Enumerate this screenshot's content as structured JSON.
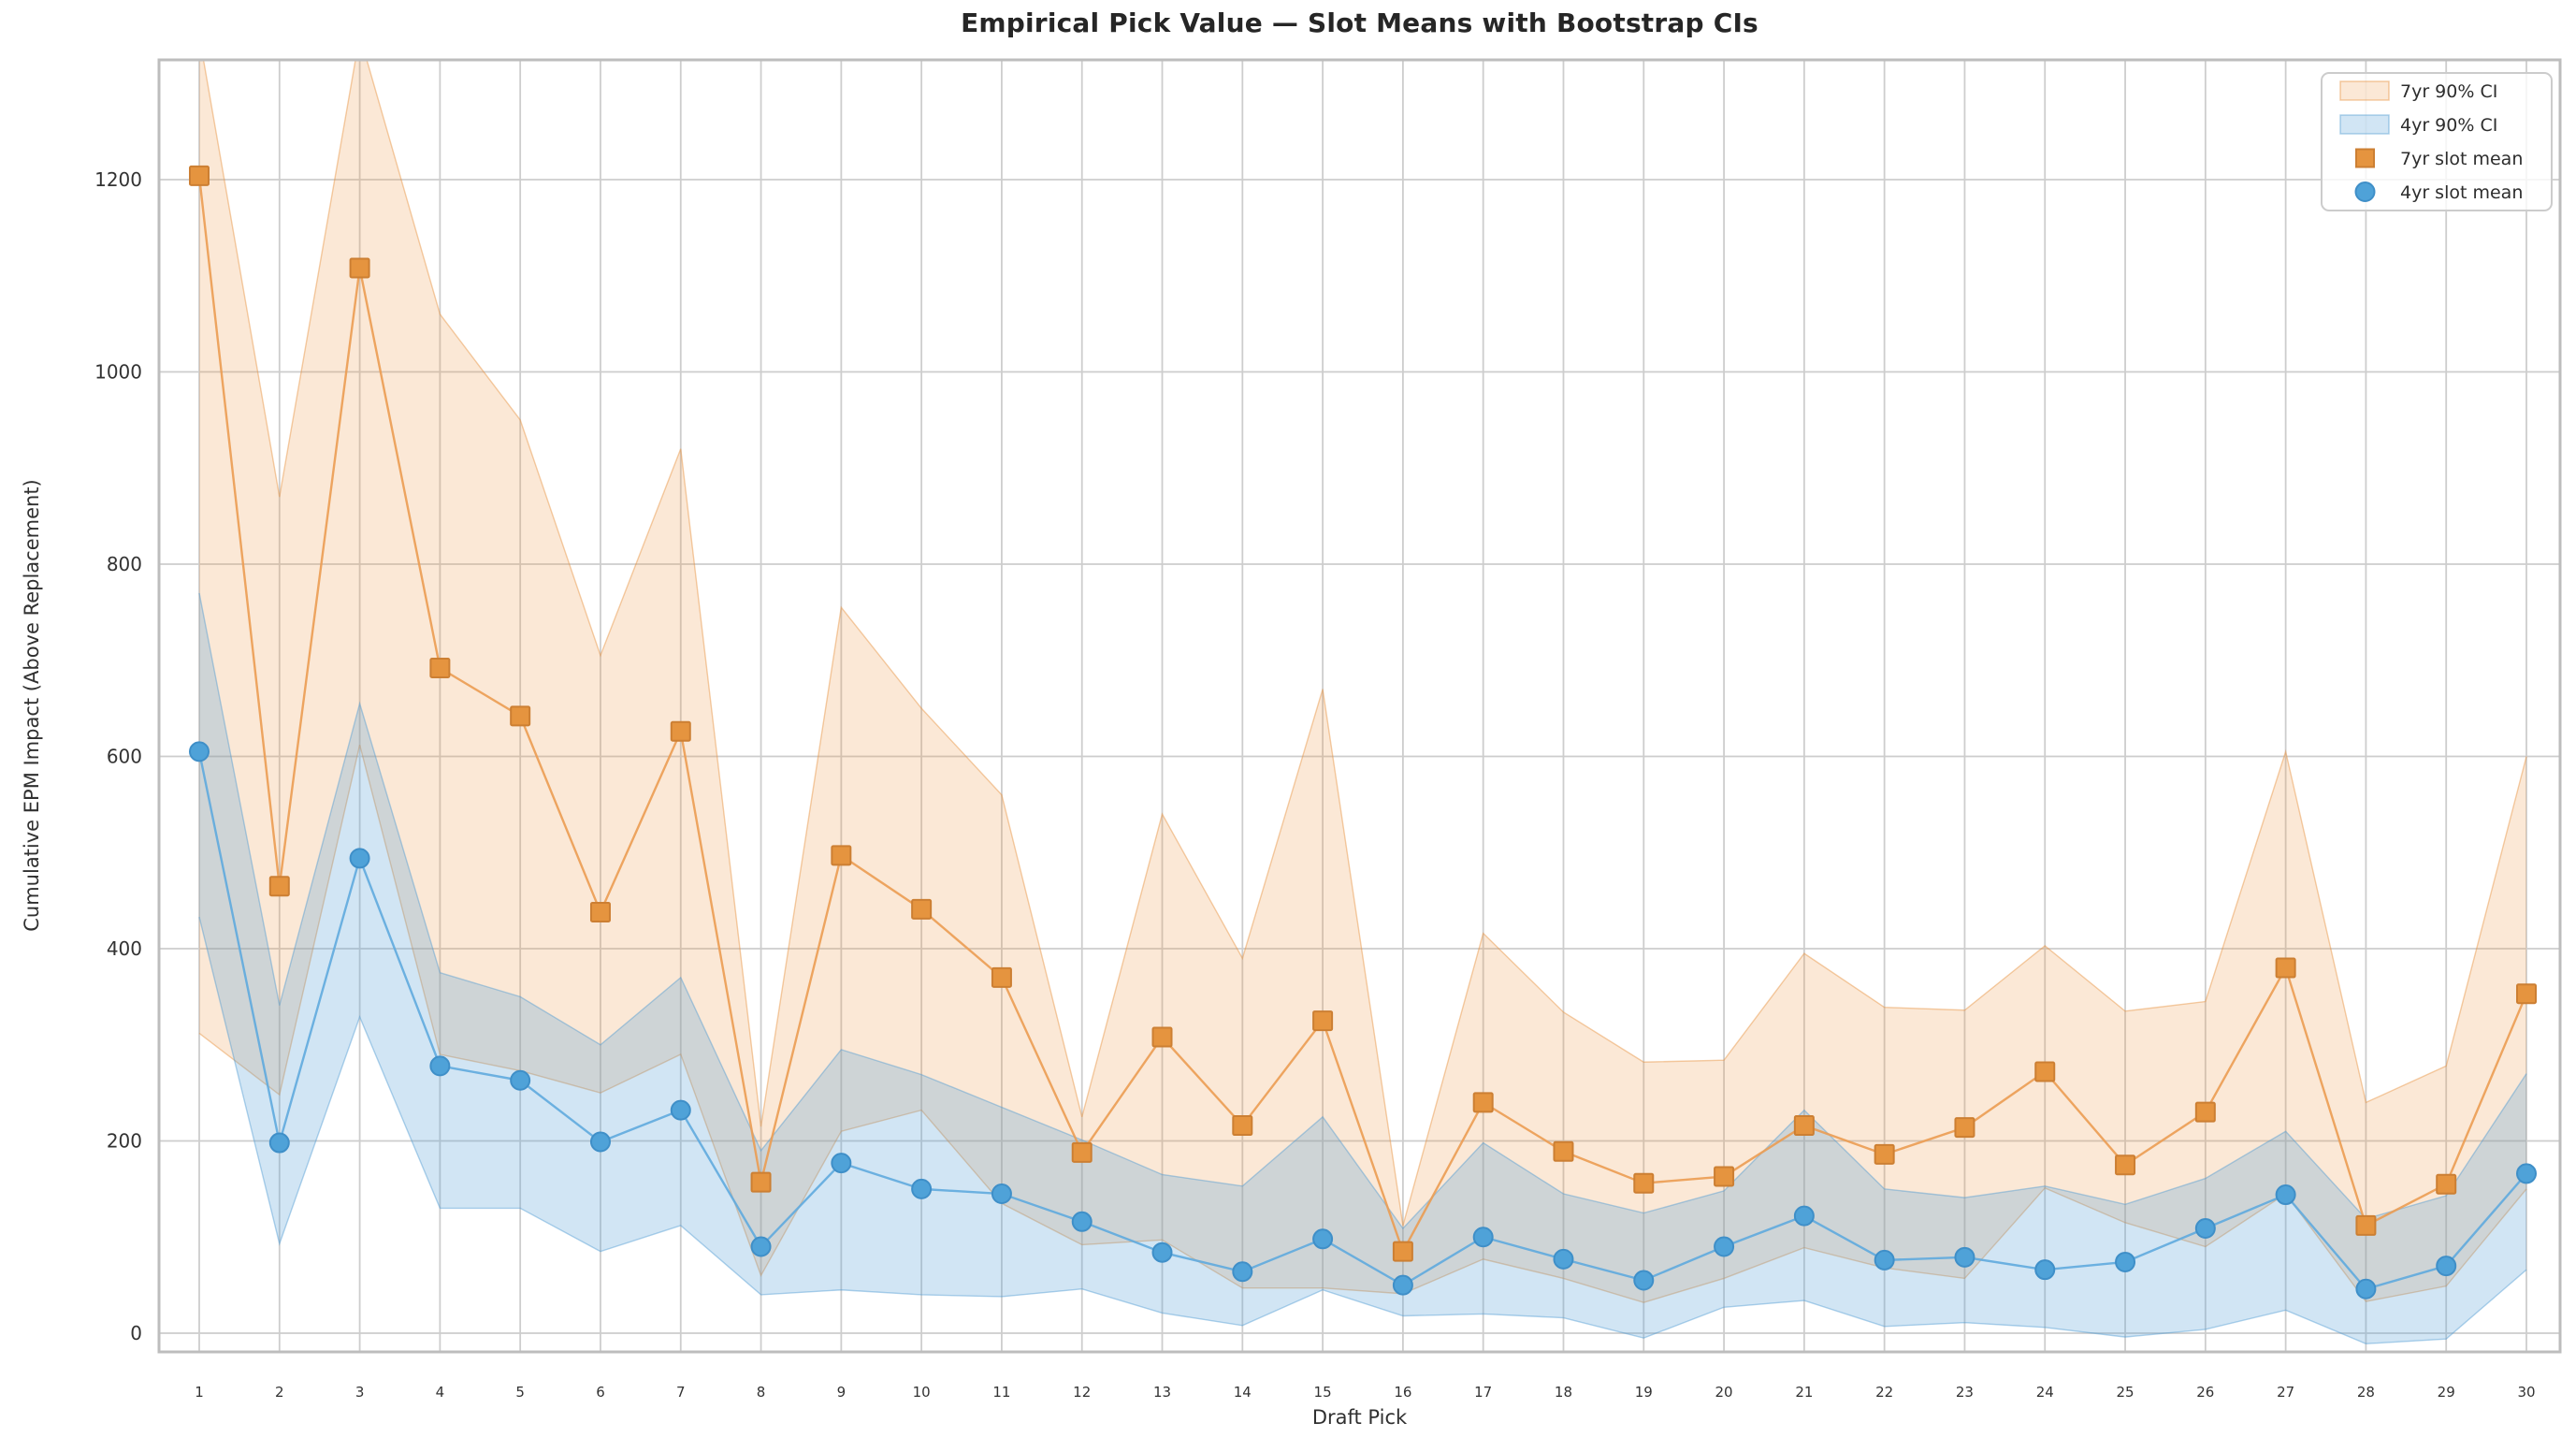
{
  "title": "Empirical Pick Value — Slot Means with Bootstrap CIs",
  "colors": {
    "orange_marker": "#e5943f",
    "orange_marker_edge": "#cc7f33",
    "orange_line": "#eb9c52",
    "orange_band_fill": "rgba(235,151,68,0.22)",
    "orange_band_edge": "rgba(230,145,60,0.45)",
    "blue_marker": "#4fa2d8",
    "blue_marker_edge": "#3f8fc8",
    "blue_line": "#5faade",
    "blue_band_fill": "rgba(88,160,214,0.28)",
    "blue_band_edge": "rgba(80,155,210,0.45)",
    "grid": "#cdcdcd",
    "spine": "#bdbdbd",
    "tick_label": "#333333",
    "legend_border": "#cccccc",
    "legend_text": "#2d2d2d",
    "title_text": "#262626"
  },
  "legend": {
    "entries": [
      {
        "label": "7yr 90% CI",
        "swatch": "band-orange"
      },
      {
        "label": "4yr 90% CI",
        "swatch": "band-blue"
      },
      {
        "label": "7yr slot mean",
        "swatch": "square-orange"
      },
      {
        "label": "4yr slot mean",
        "swatch": "circle-blue"
      }
    ],
    "position": "upper right"
  },
  "chart_data": {
    "type": "line",
    "title": "Empirical Pick Value — Slot Means with Bootstrap CIs",
    "xlabel": "Draft Pick",
    "ylabel": "Cumulative EPM Impact (Above Replacement)",
    "x": [
      1,
      2,
      3,
      4,
      5,
      6,
      7,
      8,
      9,
      10,
      11,
      12,
      13,
      14,
      15,
      16,
      17,
      18,
      19,
      20,
      21,
      22,
      23,
      24,
      25,
      26,
      27,
      28,
      29,
      30
    ],
    "x_tick_labels": [
      "1",
      "2",
      "3",
      "4",
      "5",
      "6",
      "7",
      "8",
      "9",
      "10",
      "11",
      "12",
      "13",
      "14",
      "15",
      "16",
      "17",
      "18",
      "19",
      "20",
      "21",
      "22",
      "23",
      "24",
      "25",
      "26",
      "27",
      "28",
      "29",
      "30"
    ],
    "y_ticks": [
      0,
      200,
      400,
      600,
      800,
      1000,
      1200
    ],
    "y_tick_labels": [
      "0",
      "200",
      "400",
      "600",
      "800",
      "1000",
      "1200"
    ],
    "ylim": [
      -20,
      1325
    ],
    "grid": true,
    "legend_position": "upper right",
    "series": [
      {
        "name": "7yr 90% CI",
        "type": "band",
        "hi": [
          1350,
          870,
          1350,
          1060,
          950,
          705,
          920,
          215,
          755,
          650,
          560,
          225,
          540,
          390,
          670,
          112,
          416,
          334,
          282,
          284,
          395,
          339,
          336,
          403,
          335,
          345,
          605,
          240,
          278,
          600
        ],
        "lo": [
          312,
          248,
          612,
          290,
          273,
          250,
          290,
          60,
          210,
          232,
          135,
          92,
          97,
          47,
          47,
          41,
          77,
          57,
          32,
          57,
          89,
          68,
          57,
          151,
          115,
          90,
          145,
          33,
          49,
          150
        ]
      },
      {
        "name": "4yr 90% CI",
        "type": "band",
        "hi": [
          770,
          341,
          655,
          375,
          350,
          300,
          370,
          190,
          295,
          269,
          235,
          201,
          165,
          153,
          225,
          109,
          198,
          145,
          125,
          148,
          232,
          150,
          141,
          153,
          134,
          161,
          210,
          119,
          143,
          270
        ],
        "lo": [
          433,
          93,
          329,
          130,
          130,
          85,
          112,
          40,
          45,
          40,
          38,
          46,
          21,
          8,
          45,
          18,
          20,
          16,
          -5,
          27,
          34,
          7,
          11,
          6,
          -4,
          4,
          24,
          -11,
          -6,
          66
        ]
      },
      {
        "name": "7yr slot mean",
        "type": "line",
        "marker": "square",
        "values": [
          1204,
          465,
          1108,
          692,
          642,
          438,
          626,
          157,
          497,
          441,
          370,
          188,
          308,
          216,
          325,
          85,
          240,
          189,
          156,
          163,
          216,
          186,
          214,
          272,
          175,
          230,
          380,
          112,
          155,
          353
        ]
      },
      {
        "name": "4yr slot mean",
        "type": "line",
        "marker": "circle",
        "values": [
          605,
          198,
          494,
          278,
          263,
          199,
          232,
          90,
          177,
          150,
          145,
          116,
          84,
          64,
          98,
          50,
          100,
          77,
          55,
          90,
          122,
          76,
          79,
          66,
          74,
          109,
          144,
          46,
          70,
          166
        ]
      }
    ]
  }
}
